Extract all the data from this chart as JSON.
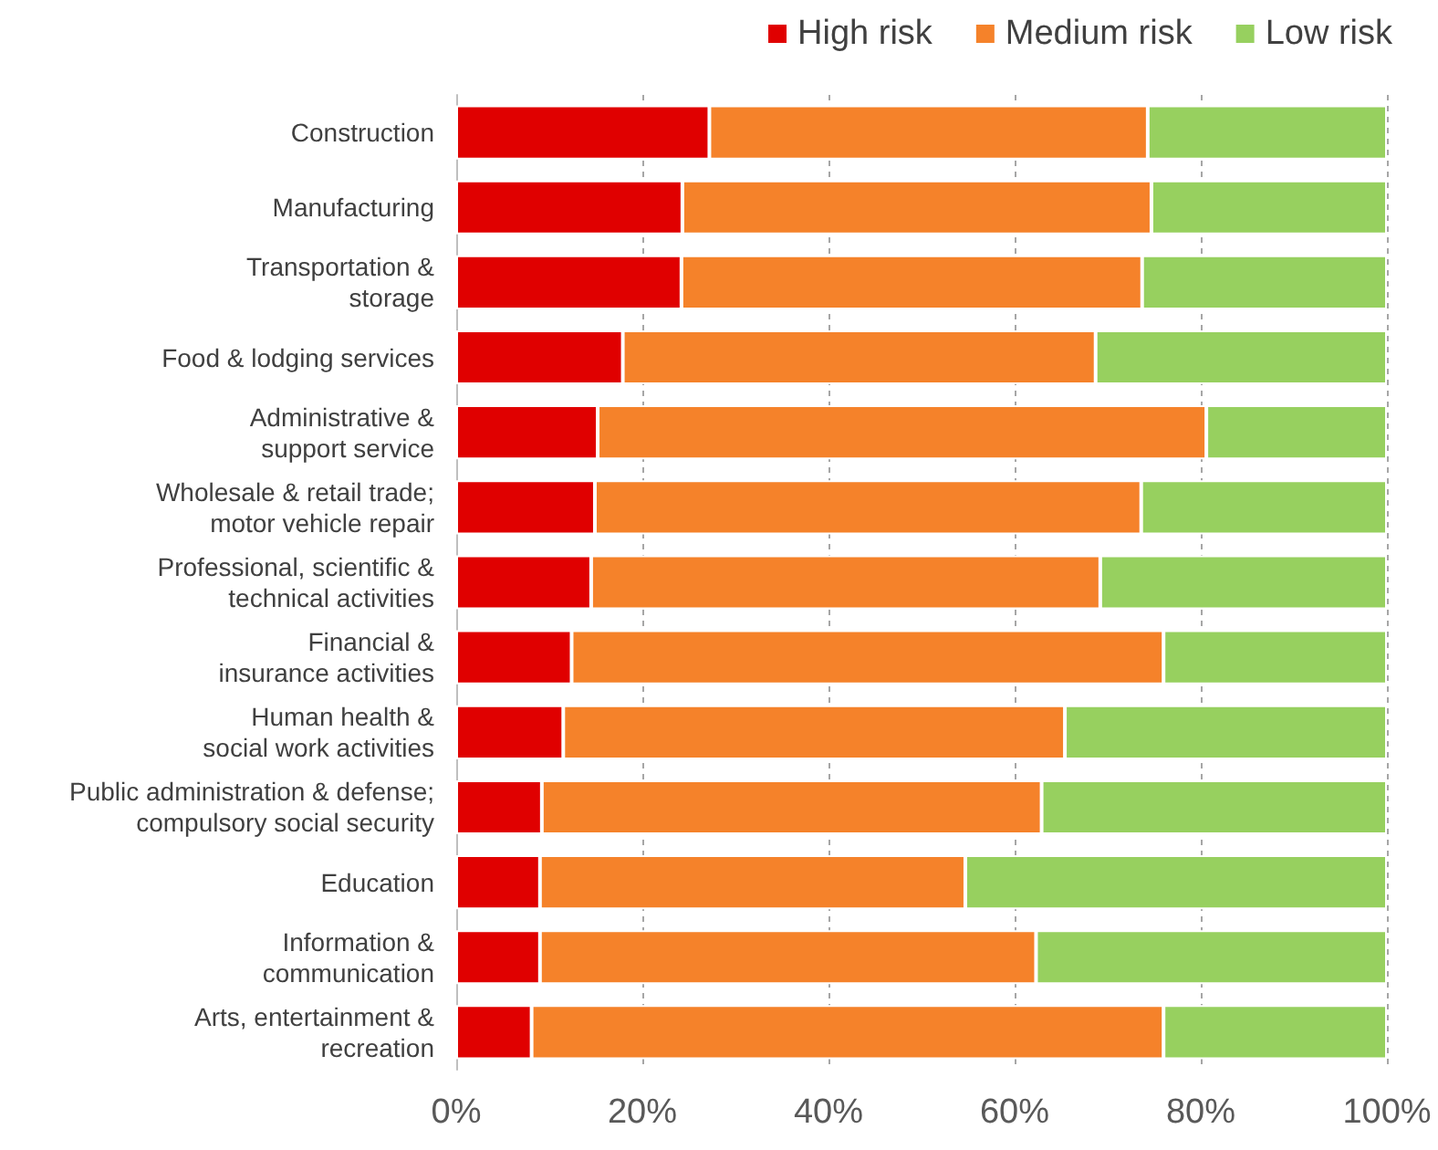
{
  "chart_data": {
    "type": "bar",
    "orientation": "horizontal",
    "stacked": true,
    "categories": [
      "Construction",
      "Manufacturing",
      "Transportation &\nstorage",
      "Food & lodging services",
      "Administrative &\nsupport service",
      "Wholesale & retail trade;\nmotor vehicle repair",
      "Professional, scientific &\ntechnical activities",
      "Financial &\ninsurance activities",
      "Human health &\nsocial work activities",
      "Public administration & defense;\ncompulsory social security",
      "Education",
      "Information &\ncommunication",
      "Arts, entertainment &\nrecreation"
    ],
    "series": [
      {
        "name": "High risk",
        "color": "#e00000",
        "values": [
          27.2,
          24.3,
          24.2,
          17.9,
          15.2,
          14.9,
          14.5,
          12.4,
          11.5,
          9.2,
          9.0,
          9.0,
          8.1
        ]
      },
      {
        "name": "Medium risk",
        "color": "#f5822a",
        "values": [
          47.1,
          50.4,
          49.5,
          50.8,
          65.4,
          58.7,
          54.7,
          63.6,
          53.9,
          53.7,
          45.7,
          53.3,
          67.9
        ]
      },
      {
        "name": "Low risk",
        "color": "#97d05f",
        "values": [
          25.7,
          25.3,
          26.3,
          31.3,
          19.4,
          26.4,
          30.8,
          24.0,
          34.6,
          37.1,
          45.3,
          37.7,
          24.0
        ]
      }
    ],
    "xlim": [
      0,
      100
    ],
    "xticks": [
      {
        "value": 0,
        "label": "0%"
      },
      {
        "value": 20,
        "label": "20%"
      },
      {
        "value": 40,
        "label": "40%"
      },
      {
        "value": 60,
        "label": "60%"
      },
      {
        "value": 80,
        "label": "80%"
      },
      {
        "value": 100,
        "label": "100%"
      }
    ],
    "grid": "x",
    "legend": "top right"
  }
}
